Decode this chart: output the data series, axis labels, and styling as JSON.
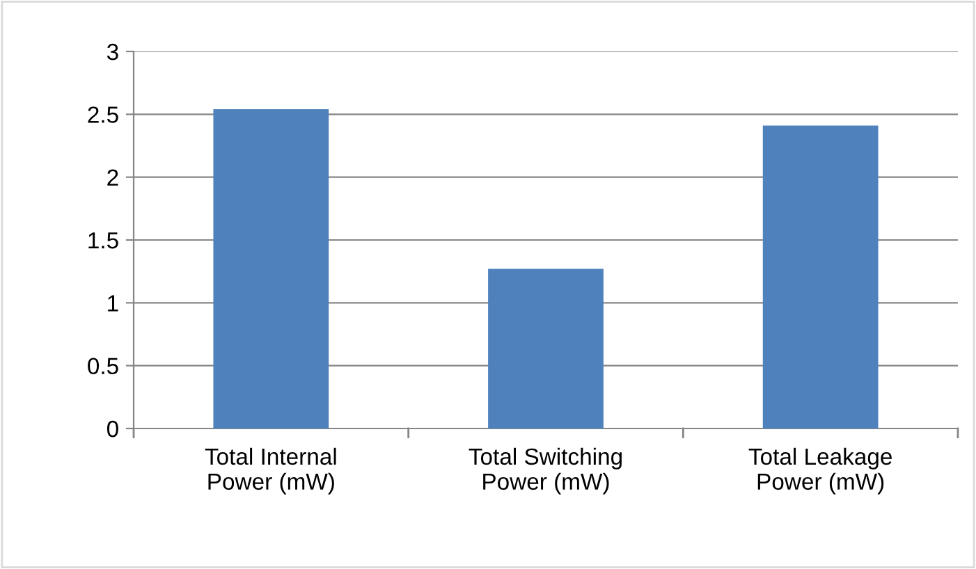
{
  "chart_data": {
    "type": "bar",
    "categories": [
      "Total Internal\nPower (mW)",
      "Total Switching\nPower (mW)",
      "Total Leakage\nPower (mW)"
    ],
    "values": [
      2.54,
      1.27,
      2.41
    ],
    "color": "#4f81bd",
    "ylim": [
      0,
      3
    ],
    "yticks": [
      0,
      0.5,
      1,
      1.5,
      2,
      2.5,
      3
    ],
    "grid": "y",
    "legend": false
  }
}
